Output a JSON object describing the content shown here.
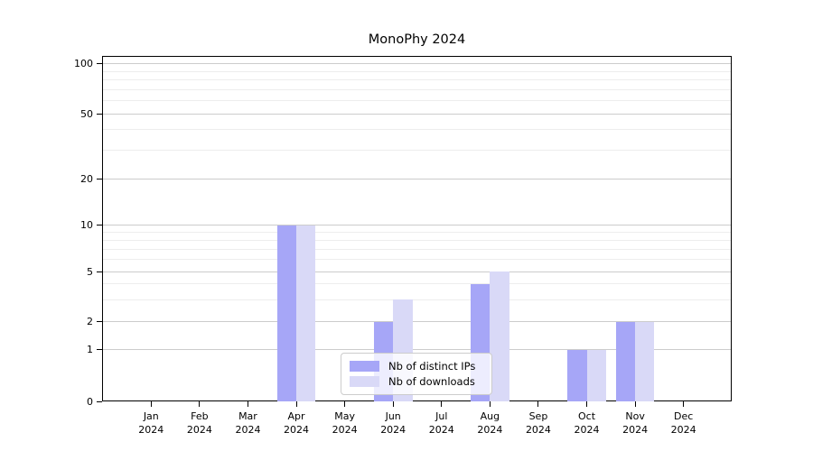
{
  "chart_data": {
    "type": "bar",
    "title": "MonoPhy 2024",
    "yscale": "log-like",
    "ylim": [
      0,
      100
    ],
    "grid": true,
    "legend_position": "lower center inside plot",
    "categories": [
      "Jan",
      "Feb",
      "Mar",
      "Apr",
      "May",
      "Jun",
      "Jul",
      "Aug",
      "Sep",
      "Oct",
      "Nov",
      "Dec"
    ],
    "x_year_line": "2024",
    "yticks": [
      0,
      1,
      2,
      5,
      10,
      20,
      50,
      100
    ],
    "y_minor_ticks": [
      3,
      4,
      6,
      7,
      8,
      9,
      30,
      40,
      60,
      70,
      80,
      90
    ],
    "series": [
      {
        "name": "Nb of distinct IPs",
        "color": "#a6a6f7",
        "values": [
          0,
          0,
          0,
          10,
          0,
          2,
          0,
          4,
          0,
          1,
          2,
          0
        ]
      },
      {
        "name": "Nb of downloads",
        "color": "#d9d9f7",
        "values": [
          0,
          0,
          0,
          10,
          0,
          3,
          0,
          5,
          0,
          1,
          2,
          0
        ]
      }
    ]
  },
  "colors": {
    "grid_major": "#cccccc",
    "grid_minor": "#ededed",
    "axis": "#000000",
    "text": "#000000",
    "legend_border": "#cccccc",
    "background": "#ffffff"
  }
}
